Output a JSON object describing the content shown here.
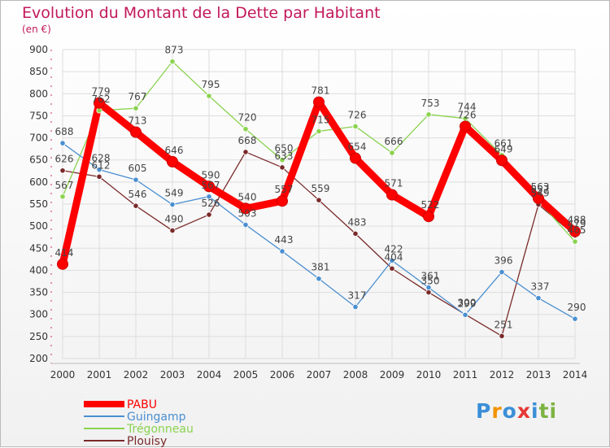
{
  "title": "Evolution du Montant de la Dette par Habitant",
  "subtitle": "(en €)",
  "brand": {
    "text": "Proxiti",
    "colors": [
      "#3b8fd8",
      "#f39200",
      "#3b8fd8",
      "#e53935",
      "#3b8fd8",
      "#7cb342",
      "#7cb342"
    ]
  },
  "chart_data": {
    "type": "line",
    "x": [
      "2000",
      "2001",
      "2002",
      "2003",
      "2004",
      "2005",
      "2006",
      "2007",
      "2008",
      "2009",
      "2010",
      "2011",
      "2012",
      "2013",
      "2014"
    ],
    "ylim": [
      200,
      900
    ],
    "yticks": [
      200,
      250,
      300,
      350,
      400,
      450,
      500,
      550,
      600,
      650,
      700,
      750,
      800,
      850,
      900
    ],
    "grid": true,
    "legend_position": "bottom-left",
    "series": [
      {
        "name": "PABU",
        "color": "#ff0000",
        "values": [
          414,
          779,
          713,
          646,
          590,
          540,
          557,
          781,
          654,
          571,
          522,
          726,
          649,
          563,
          488
        ]
      },
      {
        "name": "Guingamp",
        "color": "#4a8fd1",
        "values": [
          688,
          628,
          605,
          549,
          567,
          503,
          443,
          381,
          317,
          422,
          361,
          299,
          396,
          337,
          290
        ]
      },
      {
        "name": "Trégonneau",
        "color": "#8bd350",
        "values": [
          567,
          762,
          767,
          873,
          795,
          720,
          650,
          715,
          726,
          666,
          753,
          744,
          661,
          557,
          465
        ]
      },
      {
        "name": "Plouisy",
        "color": "#7a2a2a",
        "values": [
          626,
          612,
          546,
          490,
          526,
          668,
          633,
          559,
          483,
          404,
          350,
          300,
          251,
          549,
          479
        ]
      }
    ]
  }
}
